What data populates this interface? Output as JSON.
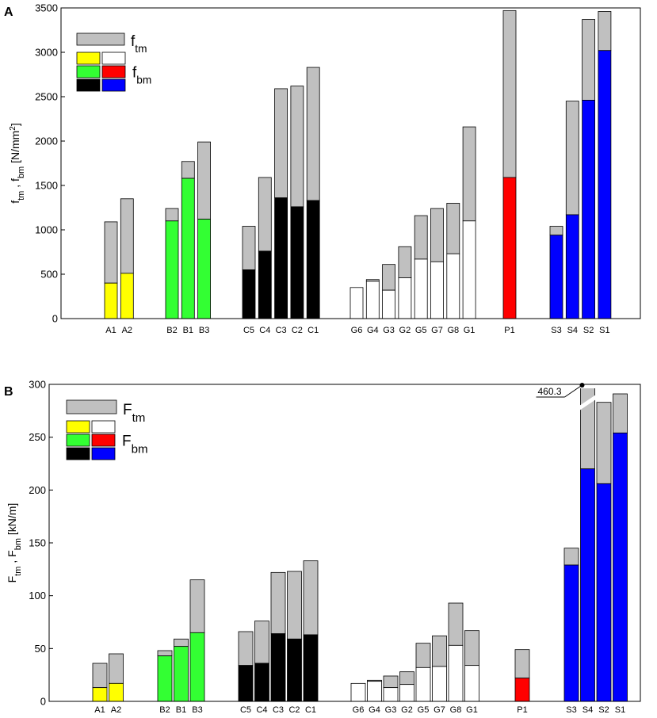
{
  "colors": {
    "total": "#c0c0c0",
    "A": "#ffff00",
    "B": "#33ff33",
    "C": "#000000",
    "G": "#ffffff",
    "P": "#ff0000",
    "S": "#0000ff"
  },
  "chart_data": [
    {
      "panel": "A",
      "type": "bar",
      "subtype": "overlaid",
      "ylabel": {
        "main1": "f",
        "sub1": "tm",
        "sep": " , ",
        "main2": "f",
        "sub2": "bm",
        "unit_pre": " [N/mm",
        "unit_sup": "2",
        "unit_post": "]"
      },
      "ylim": [
        0,
        3500
      ],
      "yticks": [
        0,
        500,
        1000,
        1500,
        2000,
        2500,
        3000,
        3500
      ],
      "legend": [
        {
          "main": "f",
          "sub": "tm"
        },
        {
          "main": "f",
          "sub": "bm"
        }
      ],
      "series_names": [
        "ftm",
        "fbm"
      ],
      "groups": [
        {
          "key": "A",
          "bars": [
            {
              "label": "A1",
              "ftm": 1090,
              "fbm": 400
            },
            {
              "label": "A2",
              "ftm": 1350,
              "fbm": 510
            }
          ]
        },
        {
          "key": "B",
          "bars": [
            {
              "label": "B2",
              "ftm": 1240,
              "fbm": 1100
            },
            {
              "label": "B1",
              "ftm": 1770,
              "fbm": 1580
            },
            {
              "label": "B3",
              "ftm": 1990,
              "fbm": 1120
            }
          ]
        },
        {
          "key": "C",
          "bars": [
            {
              "label": "C5",
              "ftm": 1040,
              "fbm": 550
            },
            {
              "label": "C4",
              "ftm": 1590,
              "fbm": 760
            },
            {
              "label": "C3",
              "ftm": 2590,
              "fbm": 1360
            },
            {
              "label": "C2",
              "ftm": 2620,
              "fbm": 1260
            },
            {
              "label": "C1",
              "ftm": 2830,
              "fbm": 1330
            }
          ]
        },
        {
          "key": "G",
          "bars": [
            {
              "label": "G6",
              "ftm": 350,
              "fbm": 350
            },
            {
              "label": "G4",
              "ftm": 440,
              "fbm": 420
            },
            {
              "label": "G3",
              "ftm": 610,
              "fbm": 320
            },
            {
              "label": "G2",
              "ftm": 810,
              "fbm": 460
            },
            {
              "label": "G5",
              "ftm": 1160,
              "fbm": 670
            },
            {
              "label": "G7",
              "ftm": 1240,
              "fbm": 640
            },
            {
              "label": "G8",
              "ftm": 1300,
              "fbm": 730
            },
            {
              "label": "G1",
              "ftm": 2160,
              "fbm": 1100
            }
          ]
        },
        {
          "key": "P",
          "bars": [
            {
              "label": "P1",
              "ftm": 3470,
              "fbm": 1590
            }
          ]
        },
        {
          "key": "S",
          "bars": [
            {
              "label": "S3",
              "ftm": 1040,
              "fbm": 940
            },
            {
              "label": "S4",
              "ftm": 2450,
              "fbm": 1170
            },
            {
              "label": "S2",
              "ftm": 3370,
              "fbm": 2460
            },
            {
              "label": "S1",
              "ftm": 3460,
              "fbm": 3020
            }
          ]
        }
      ]
    },
    {
      "panel": "B",
      "type": "bar",
      "subtype": "overlaid",
      "ylabel": {
        "main1": "F",
        "sub1": "tm",
        "sep": " , ",
        "main2": "F",
        "sub2": "bm",
        "unit_pre": " [kN/m]",
        "unit_sup": "",
        "unit_post": ""
      },
      "ylim": [
        0,
        300
      ],
      "yticks": [
        0,
        50,
        100,
        150,
        200,
        250,
        300
      ],
      "legend": [
        {
          "main": "F",
          "sub": "tm"
        },
        {
          "main": "F",
          "sub": "bm"
        }
      ],
      "annotation": {
        "text": "460.3",
        "bar": "S4"
      },
      "groups": [
        {
          "key": "A",
          "bars": [
            {
              "label": "A1",
              "ftm": 36,
              "fbm": 13
            },
            {
              "label": "A2",
              "ftm": 45,
              "fbm": 17
            }
          ]
        },
        {
          "key": "B",
          "bars": [
            {
              "label": "B2",
              "ftm": 48,
              "fbm": 43
            },
            {
              "label": "B1",
              "ftm": 59,
              "fbm": 52
            },
            {
              "label": "B3",
              "ftm": 115,
              "fbm": 65
            }
          ]
        },
        {
          "key": "C",
          "bars": [
            {
              "label": "C5",
              "ftm": 66,
              "fbm": 34
            },
            {
              "label": "C4",
              "ftm": 76,
              "fbm": 36
            },
            {
              "label": "C3",
              "ftm": 122,
              "fbm": 64
            },
            {
              "label": "C2",
              "ftm": 123,
              "fbm": 59
            },
            {
              "label": "C1",
              "ftm": 133,
              "fbm": 63
            }
          ]
        },
        {
          "key": "G",
          "bars": [
            {
              "label": "G6",
              "ftm": 17,
              "fbm": 17
            },
            {
              "label": "G4",
              "ftm": 20,
              "fbm": 19
            },
            {
              "label": "G3",
              "ftm": 24,
              "fbm": 13
            },
            {
              "label": "G2",
              "ftm": 28,
              "fbm": 16
            },
            {
              "label": "G5",
              "ftm": 55,
              "fbm": 32
            },
            {
              "label": "G7",
              "ftm": 62,
              "fbm": 33
            },
            {
              "label": "G8",
              "ftm": 93,
              "fbm": 53
            },
            {
              "label": "G1",
              "ftm": 67,
              "fbm": 34
            }
          ]
        },
        {
          "key": "P",
          "bars": [
            {
              "label": "P1",
              "ftm": 49,
              "fbm": 22
            }
          ]
        },
        {
          "key": "S",
          "bars": [
            {
              "label": "S3",
              "ftm": 145,
              "fbm": 129
            },
            {
              "label": "S4",
              "ftm": 460.3,
              "fbm": 220
            },
            {
              "label": "S2",
              "ftm": 283,
              "fbm": 206
            },
            {
              "label": "S1",
              "ftm": 291,
              "fbm": 254
            }
          ]
        }
      ]
    }
  ]
}
